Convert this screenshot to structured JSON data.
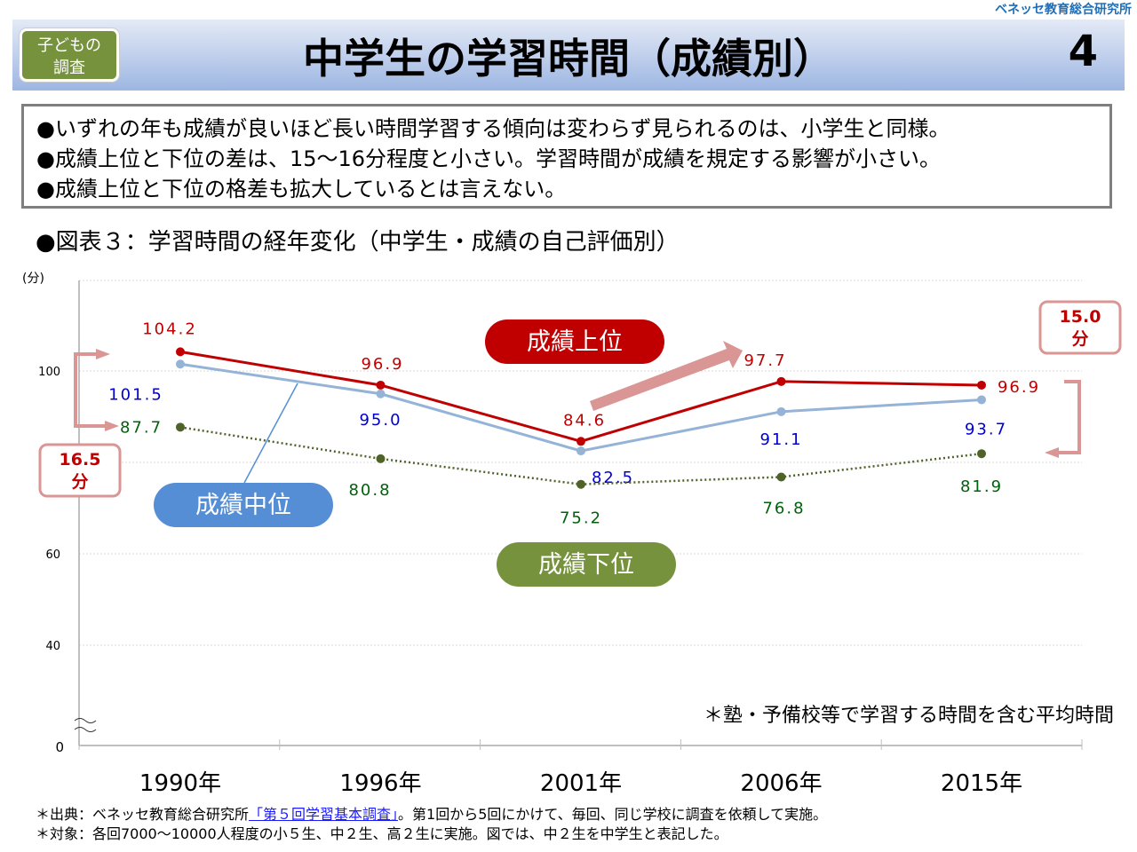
{
  "header": {
    "brand": "ベネッセ教育総合研究所",
    "badge_line1": "子どもの",
    "badge_line2": "調査",
    "title": "中学生の学習時間（成績別）",
    "page_number": "4"
  },
  "summary": [
    "●いずれの年も成績が良いほど長い時間学習する傾向は変わらず見られるのは、小学生と同様。",
    "●成績上位と下位の差は、15～16分程度と小さい。学習時間が成績を規定する影響が小さい。",
    "●成績上位と下位の格差も拡大しているとは言えない。"
  ],
  "figure_title": "●図表３：学習時間の経年変化（中学生・成績の自己評価別）",
  "note": "＊塾・予備校等で学習する時間を含む平均時間",
  "footer": {
    "source_prefix": "＊出典：ベネッセ教育総合研究所",
    "source_link": "「第５回学習基本調査」",
    "source_suffix": "。第1回から5回にかけて、毎回、同じ学校に調査を依頼して実施。",
    "target": "＊対象：各回7000～10000人程度の小５生、中２生、高２生に実施。図では、中２生を中学生と表記した。"
  },
  "chart_data": {
    "type": "line",
    "ylabel": "(分)",
    "categories": [
      "1990年",
      "1996年",
      "2001年",
      "2006年",
      "2015年"
    ],
    "yticks": [
      "100",
      "60",
      "40",
      "0"
    ],
    "ylim": [
      0,
      110
    ],
    "series": [
      {
        "name": "成績上位",
        "color": "#c00000",
        "values": [
          104.2,
          96.9,
          84.6,
          97.7,
          96.9
        ],
        "labels": [
          "104.2",
          "96.9",
          "84.6",
          "97.7",
          "96.9"
        ]
      },
      {
        "name": "成績中位",
        "color": "#95b3d7",
        "values": [
          101.5,
          95.0,
          82.5,
          91.1,
          93.7
        ],
        "labels": [
          "101.5",
          "95.0",
          "82.5",
          "91.1",
          "93.7"
        ]
      },
      {
        "name": "成績下位",
        "color": "#4f6228",
        "values": [
          87.7,
          80.8,
          75.2,
          76.8,
          81.9
        ],
        "labels": [
          "87.7",
          "80.8",
          "75.2",
          "76.8",
          "81.9"
        ]
      }
    ],
    "annotations": {
      "gap_1990": "16.5",
      "gap_2015": "15.0",
      "unit": "分"
    }
  }
}
